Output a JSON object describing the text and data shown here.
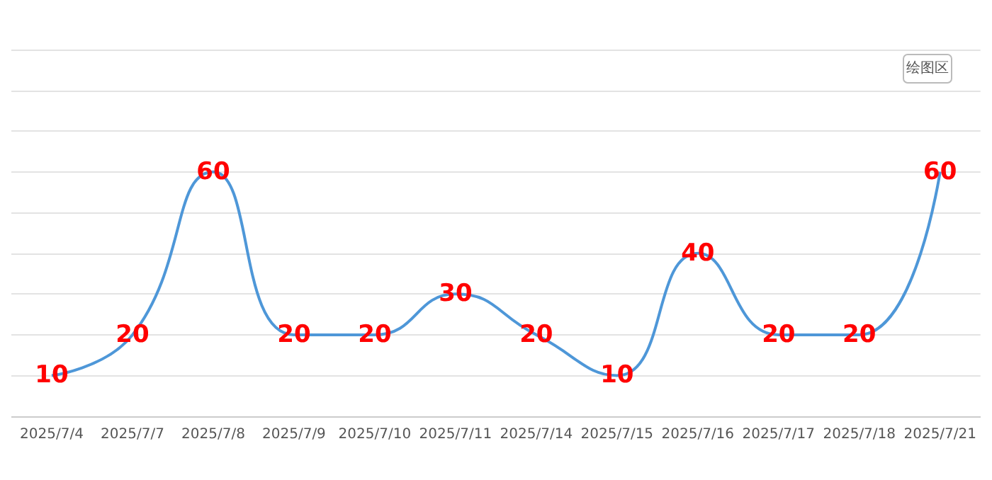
{
  "chart_data": {
    "type": "line",
    "categories": [
      "2025/7/4",
      "2025/7/7",
      "2025/7/8",
      "2025/7/9",
      "2025/7/10",
      "2025/7/11",
      "2025/7/14",
      "2025/7/15",
      "2025/7/16",
      "2025/7/17",
      "2025/7/18",
      "2025/7/21"
    ],
    "series": [
      {
        "color": "#4e97d8",
        "values": [
          10,
          20,
          60,
          20,
          20,
          30,
          20,
          10,
          40,
          20,
          20,
          60
        ]
      }
    ],
    "ylim": [
      0,
      90
    ],
    "yticks": [
      0,
      10,
      20,
      30,
      40,
      50,
      60,
      70,
      80,
      90
    ],
    "tick_labels": "x",
    "grid": "y",
    "marker": "none",
    "line_style": "solid",
    "data_labels": true,
    "annotations": [
      "绘图区"
    ]
  }
}
